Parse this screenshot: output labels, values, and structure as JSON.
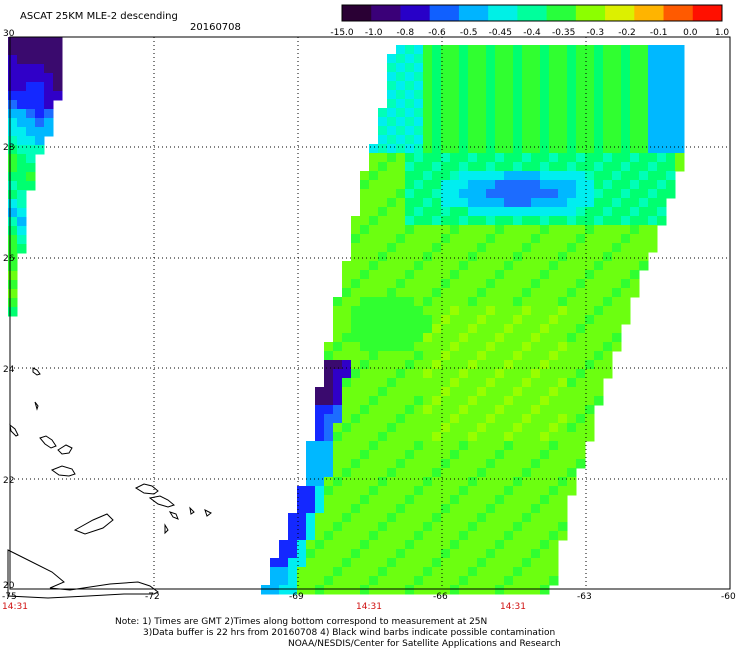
{
  "header": {
    "title": "ASCAT 25KM MLE-2 descending",
    "date": "20160708"
  },
  "colorbar": {
    "labels": [
      "-15.0",
      "-1.0",
      "-0.8",
      "-0.6",
      "-0.5",
      "-0.45",
      "-0.4",
      "-0.35",
      "-0.3",
      "-0.2",
      "-0.1",
      "0.0",
      "1.0"
    ],
    "colors": [
      "#2a0034",
      "#3a0078",
      "#2800c8",
      "#1060ff",
      "#00b4ff",
      "#00f0e6",
      "#00ff9c",
      "#28ff3c",
      "#8cff00",
      "#dcf000",
      "#ffb400",
      "#ff5a00",
      "#ff1000"
    ]
  },
  "map": {
    "lon_range": [
      -75,
      -60
    ],
    "lat_range": [
      20,
      30
    ],
    "lon_ticks": [
      "-75",
      "-72",
      "-69",
      "-66",
      "-63",
      "-60"
    ],
    "lat_ticks": [
      "20",
      "22",
      "24",
      "26",
      "28",
      "30"
    ],
    "time_labels": [
      "14:31",
      "14:31",
      "14:31"
    ],
    "time_label_color": "#d01010"
  },
  "footer": {
    "note_line1": "Note: 1) Times are GMT 2)Times along bottom correspond to measurement at 25N",
    "note_line2": "3)Data buffer is 22 hrs from 20160708 4) Black wind barbs indicate possible contamination",
    "credit": "NOAA/NESDIS/Center for Satellite Applications and Research"
  }
}
